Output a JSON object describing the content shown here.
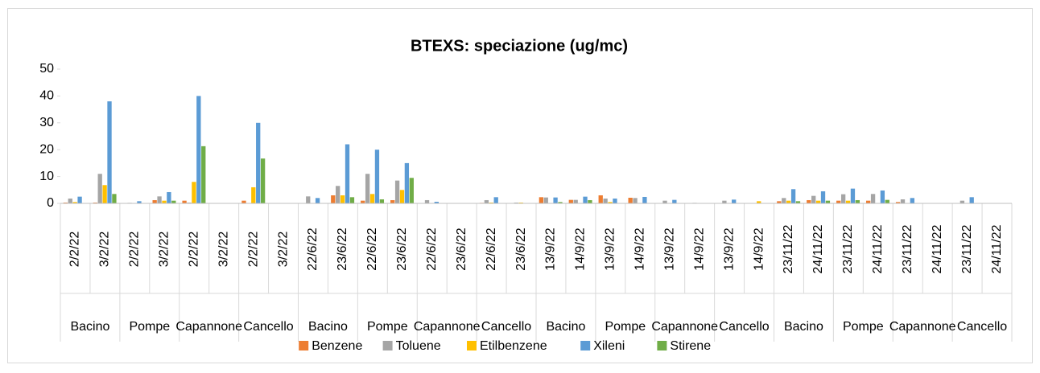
{
  "chart_data": {
    "type": "bar",
    "title": "BTEXS: speciazione (ug/mc)",
    "categories": [
      "2/2/22",
      "3/2/22",
      "2/2/22",
      "3/2/22",
      "2/2/22",
      "3/2/22",
      "2/2/22",
      "3/2/22",
      "22/6/22",
      "23/6/22",
      "22/6/22",
      "23/6/22",
      "22/6/22",
      "23/6/22",
      "22/6/22",
      "23/6/22",
      "13/9/22",
      "14/9/22",
      "13/9/22",
      "14/9/22",
      "13/9/22",
      "14/9/22",
      "13/9/22",
      "14/9/22",
      "23/11/22",
      "24/11/22",
      "23/11/22",
      "24/11/22",
      "23/11/22",
      "24/11/22",
      "23/11/22",
      "24/11/22"
    ],
    "groups": [
      "Bacino",
      "Pompe",
      "Capannone",
      "Cancello",
      "Bacino",
      "Pompe",
      "Capannone",
      "Cancello",
      "Bacino",
      "Pompe",
      "Capannone",
      "Cancello",
      "Bacino",
      "Pompe",
      "Capannone",
      "Cancello"
    ],
    "series": [
      {
        "name": "Benzene",
        "color": "#ed7d31",
        "values": [
          0.3,
          0.3,
          0,
          1.2,
          1,
          0,
          1,
          0,
          0,
          3,
          1,
          1.2,
          0,
          0,
          0.2,
          0,
          2.3,
          1.3,
          3,
          2.1,
          0,
          0,
          0,
          0,
          0.8,
          1.2,
          1,
          1,
          0.5,
          0,
          0,
          0
        ]
      },
      {
        "name": "Toluene",
        "color": "#a5a5a5",
        "values": [
          1.8,
          11,
          0.2,
          2.6,
          0.3,
          0,
          0,
          0,
          2.6,
          6.5,
          11,
          8.5,
          1.2,
          0,
          1.2,
          0.3,
          2.2,
          1.3,
          1.8,
          2,
          1,
          0.2,
          1,
          0,
          2,
          2.8,
          3.4,
          3.5,
          1.5,
          0,
          1,
          0
        ]
      },
      {
        "name": "Etilbenzene",
        "color": "#ffc000",
        "values": [
          0.5,
          6.8,
          0,
          1,
          8,
          0,
          6,
          0,
          0,
          3,
          3.5,
          5,
          0,
          0,
          0.3,
          0.3,
          0,
          0,
          0.5,
          0,
          0,
          0,
          0,
          0.8,
          1,
          1,
          1,
          0,
          0,
          0,
          0,
          0
        ]
      },
      {
        "name": "Xileni",
        "color": "#5b9bd5",
        "values": [
          2.5,
          38,
          0.8,
          4.2,
          40,
          0,
          30,
          0,
          2,
          22,
          20,
          15,
          0.6,
          0,
          2.3,
          0,
          2.2,
          2.5,
          1.8,
          2.4,
          1.3,
          0,
          1.4,
          0,
          5.3,
          4.5,
          5.5,
          4.8,
          2,
          0,
          2.3,
          0
        ]
      },
      {
        "name": "Stirene",
        "color": "#70ad47",
        "values": [
          0,
          3.5,
          0,
          1,
          21.3,
          0,
          16.7,
          0,
          0,
          2.3,
          1.5,
          9.5,
          0,
          0,
          0,
          0,
          0.5,
          1.2,
          0,
          0,
          0,
          0,
          0,
          0,
          0.8,
          1,
          1.2,
          1.3,
          0,
          0,
          0,
          0
        ]
      }
    ],
    "ylim": [
      0,
      50
    ],
    "yticks": [
      0,
      10,
      20,
      30,
      40,
      50
    ],
    "grid": false
  }
}
